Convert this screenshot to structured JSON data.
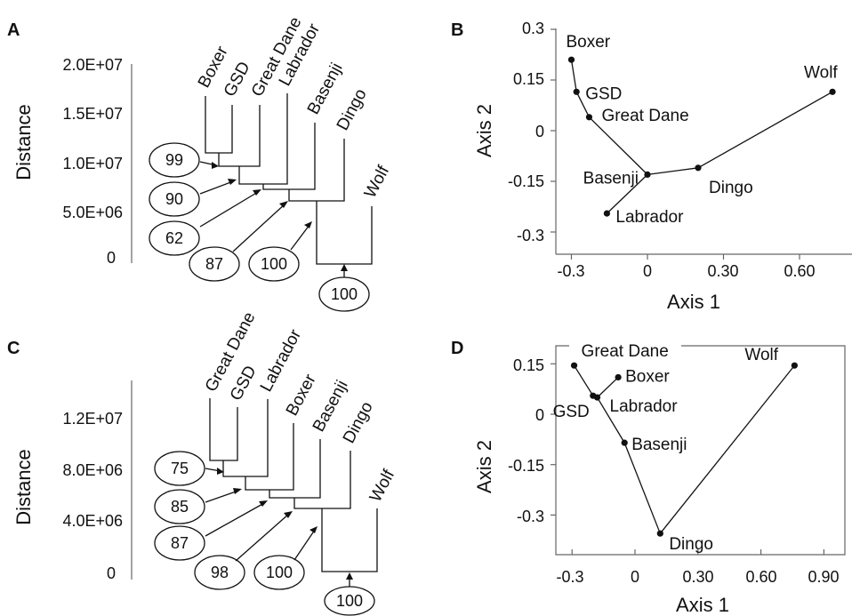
{
  "panels": {
    "A": {
      "letter": "A",
      "ylabel": "Distance",
      "yticks": [
        "2.0E+07",
        "1.5E+07",
        "1.0E+07",
        "5.0E+06",
        "0"
      ],
      "leaves": [
        "Boxer",
        "GSD",
        "Great Dane",
        "Labrador",
        "Basenji",
        "Dingo",
        "Wolf"
      ],
      "bootstrap": [
        "99",
        "90",
        "62",
        "87",
        "100",
        "100"
      ]
    },
    "B": {
      "letter": "B",
      "xlabel": "Axis 1",
      "ylabel": "Axis 2",
      "xticks": [
        "-0.3",
        "0",
        "0.30",
        "0.60"
      ],
      "yticks": [
        "0.3",
        "0.15",
        "0",
        "-0.15",
        "-0.3"
      ]
    },
    "C": {
      "letter": "C",
      "ylabel": "Distance",
      "yticks": [
        "1.2E+07",
        "8.0E+06",
        "4.0E+06",
        "0"
      ],
      "leaves": [
        "Great  Dane",
        "GSD",
        "Labrador",
        "Boxer",
        "Basenji",
        "Dingo",
        "Wolf"
      ],
      "bootstrap": [
        "75",
        "85",
        "87",
        "98",
        "100",
        "100"
      ]
    },
    "D": {
      "letter": "D",
      "xlabel": "Axis 1",
      "ylabel": "Axis 2",
      "xticks": [
        "-0.3",
        "0",
        "0.30",
        "0.60",
        "0.90"
      ],
      "yticks": [
        "0.15",
        "0",
        "-0.15",
        "-0.3"
      ]
    }
  },
  "chart_data": [
    {
      "type": "scatter",
      "panel": "B",
      "xlabel": "Axis 1",
      "ylabel": "Axis 2",
      "xlim": [
        -0.35,
        0.78
      ],
      "ylim": [
        -0.3,
        0.3
      ],
      "points": [
        {
          "name": "Boxer",
          "x": -0.3,
          "y": 0.21
        },
        {
          "name": "GSD",
          "x": -0.28,
          "y": 0.115
        },
        {
          "name": "Great Dane",
          "x": -0.23,
          "y": 0.04
        },
        {
          "name": "Basenji",
          "x": 0.0,
          "y": -0.13
        },
        {
          "name": "Labrador",
          "x": -0.16,
          "y": -0.245
        },
        {
          "name": "Dingo",
          "x": 0.2,
          "y": -0.11
        },
        {
          "name": "Wolf",
          "x": 0.73,
          "y": 0.115
        }
      ],
      "edges": [
        [
          "Boxer",
          "GSD"
        ],
        [
          "GSD",
          "Great Dane"
        ],
        [
          "Great Dane",
          "Basenji"
        ],
        [
          "Labrador",
          "Basenji"
        ],
        [
          "Basenji",
          "Dingo"
        ],
        [
          "Dingo",
          "Wolf"
        ]
      ]
    },
    {
      "type": "scatter",
      "panel": "D",
      "xlabel": "Axis 1",
      "ylabel": "Axis 2",
      "xlim": [
        -0.4,
        0.97
      ],
      "ylim": [
        -0.39,
        0.2
      ],
      "points": [
        {
          "name": "Great Dane",
          "x": -0.29,
          "y": 0.145
        },
        {
          "name": "Boxer",
          "x": -0.08,
          "y": 0.11
        },
        {
          "name": "Labrador",
          "x": -0.18,
          "y": 0.05
        },
        {
          "name": "GSD",
          "x": -0.2,
          "y": 0.055
        },
        {
          "name": "Basenji",
          "x": -0.05,
          "y": -0.085
        },
        {
          "name": "Dingo",
          "x": 0.12,
          "y": -0.355
        },
        {
          "name": "Wolf",
          "x": 0.76,
          "y": 0.145
        }
      ],
      "edges": [
        [
          "Great Dane",
          "GSD"
        ],
        [
          "Boxer",
          "Labrador"
        ],
        [
          "GSD",
          "Labrador"
        ],
        [
          "Labrador",
          "Basenji"
        ],
        [
          "Basenji",
          "Dingo"
        ],
        [
          "Dingo",
          "Wolf"
        ]
      ]
    }
  ]
}
